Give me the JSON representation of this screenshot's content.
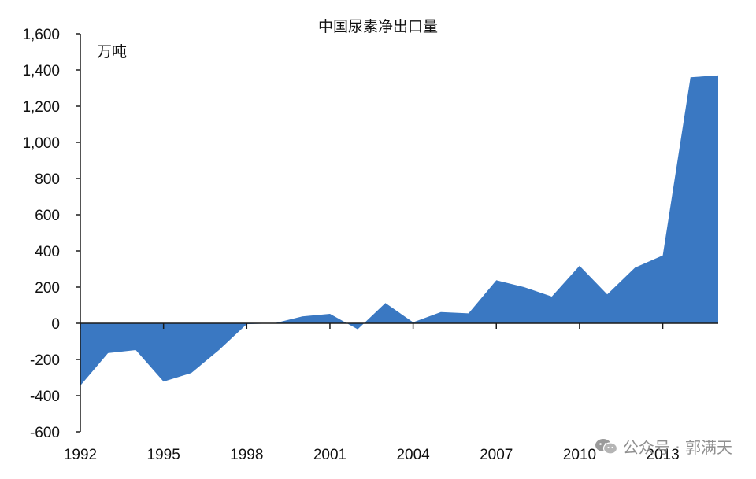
{
  "chart_data": {
    "type": "area",
    "title": "中国尿素净出口量",
    "unit_label": "万吨",
    "x": [
      1992,
      1993,
      1994,
      1995,
      1996,
      1997,
      1998,
      1999,
      2000,
      2001,
      2002,
      2003,
      2004,
      2005,
      2006,
      2007,
      2008,
      2009,
      2010,
      2011,
      2012,
      2013,
      2014,
      2015
    ],
    "series": [
      {
        "values": [
          -345,
          -165,
          -148,
          -322,
          -275,
          -148,
          -5,
          0,
          38,
          52,
          -33,
          112,
          5,
          62,
          55,
          238,
          200,
          148,
          318,
          160,
          308,
          375,
          1360,
          1370
        ]
      }
    ],
    "xticks": [
      "1992",
      "1995",
      "1998",
      "2001",
      "2004",
      "2007",
      "2010",
      "2013"
    ],
    "yticks": [
      "1,600",
      "1,400",
      "1,200",
      "1,000",
      "800",
      "600",
      "400",
      "200",
      "0",
      "-200",
      "-400",
      "-600"
    ],
    "ylim": [
      -600,
      1600
    ],
    "grid": false,
    "colors": {
      "area": "#3a78c2",
      "axis": "#1a1a1a"
    }
  },
  "watermark": {
    "text": "公众号 · 郭满天",
    "icon": "wechat-icon"
  }
}
